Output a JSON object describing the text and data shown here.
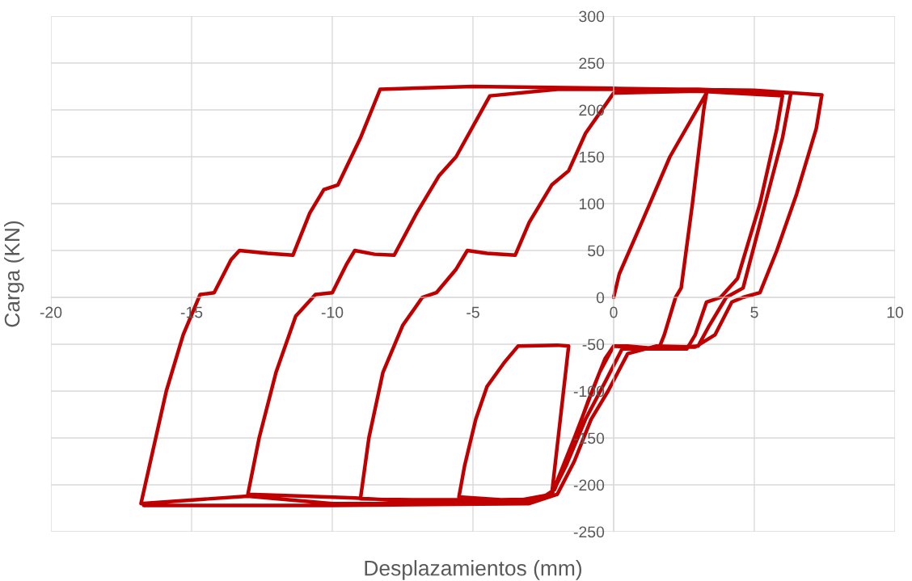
{
  "chart_data": {
    "type": "line",
    "xlabel": "Desplazamientos (mm)",
    "ylabel": "Carga (KN)",
    "xlim": [
      -20,
      10
    ],
    "xticks": [
      -20,
      -15,
      -10,
      -5,
      0,
      5,
      10
    ],
    "ylim": [
      -250,
      300
    ],
    "yticks": [
      -250,
      -200,
      -150,
      -100,
      -50,
      0,
      50,
      100,
      150,
      200,
      250,
      300
    ],
    "grid": true,
    "marker": "none",
    "line_style": "solid",
    "series": [
      {
        "color": "#c00000",
        "x": [
          0,
          0.2,
          1,
          2,
          3.3,
          3.2,
          2.8,
          2.4,
          2.2,
          1.8,
          1.6,
          0.5,
          0,
          -0.3,
          -0.9,
          -1.5,
          -2.1,
          -2.6,
          -4,
          -5.5,
          -5.3,
          -4.9,
          -4.5,
          -3.9,
          -3.4,
          -2,
          -1.6,
          -2.2,
          -3,
          -5,
          -7,
          -9,
          -8.7,
          -8.2,
          -7.5,
          -6.8,
          -6.3,
          -5.6,
          -5.2,
          -4.5,
          -3.5,
          -3,
          -2.2,
          -1.6,
          -1,
          0,
          3,
          6,
          5.8,
          5.2,
          4.4,
          3.8,
          3.3,
          2.9,
          2.6,
          1.5,
          0,
          -0.5,
          -1.4,
          -2.2,
          -3,
          -7,
          -9.2,
          -11,
          -13,
          -12.6,
          -12,
          -11.3,
          -10.6,
          -10,
          -9.5,
          -9.2,
          -8.5,
          -7.8,
          -7,
          -6.2,
          -5.6,
          -4.4,
          -2,
          3,
          6.3,
          6,
          5.3,
          4.6,
          4,
          3.4,
          3,
          1.5,
          0.3,
          -0.3,
          -1,
          -1.7,
          -2.2,
          -4,
          -10,
          -13,
          -16.8,
          -16.5,
          -15.9,
          -15.3,
          -14.7,
          -14.2,
          -13.6,
          -13.3,
          -12.3,
          -11.4,
          -10.8,
          -10.3,
          -9.8,
          -9,
          -8.3,
          -5,
          0,
          5,
          7.4,
          7.2,
          6.5,
          5.8,
          5.2,
          4.6,
          4.2,
          3.6,
          2.9,
          1.5,
          0.5,
          -0.2,
          -0.8,
          -1.4,
          -2,
          -3,
          -10,
          -16.7
        ],
        "values": [
          0,
          25,
          80,
          150,
          218,
          200,
          100,
          10,
          0,
          -40,
          -55,
          -52,
          -52,
          -65,
          -110,
          -160,
          -205,
          -215,
          -216,
          -213,
          -180,
          -130,
          -95,
          -70,
          -52,
          -51,
          -52,
          -210,
          -216,
          -216,
          -216,
          -215,
          -150,
          -80,
          -30,
          0,
          5,
          30,
          50,
          47,
          45,
          80,
          120,
          135,
          175,
          218,
          220,
          215,
          180,
          100,
          20,
          0,
          -5,
          -40,
          -55,
          -55,
          -52,
          -80,
          -150,
          -210,
          -218,
          -218,
          -214,
          -212,
          -210,
          -150,
          -80,
          -20,
          3,
          5,
          35,
          50,
          46,
          45,
          90,
          130,
          150,
          215,
          222,
          222,
          218,
          170,
          90,
          10,
          0,
          -30,
          -52,
          -55,
          -55,
          -90,
          -130,
          -180,
          -210,
          -220,
          -220,
          -212,
          -220,
          -180,
          -100,
          -40,
          3,
          5,
          40,
          50,
          47,
          45,
          90,
          115,
          120,
          170,
          222,
          225,
          223,
          221,
          216,
          180,
          110,
          50,
          5,
          0,
          -5,
          -40,
          -53,
          -52,
          -60,
          -100,
          -130,
          -175,
          -210,
          -220,
          -222,
          -222
        ]
      }
    ]
  }
}
